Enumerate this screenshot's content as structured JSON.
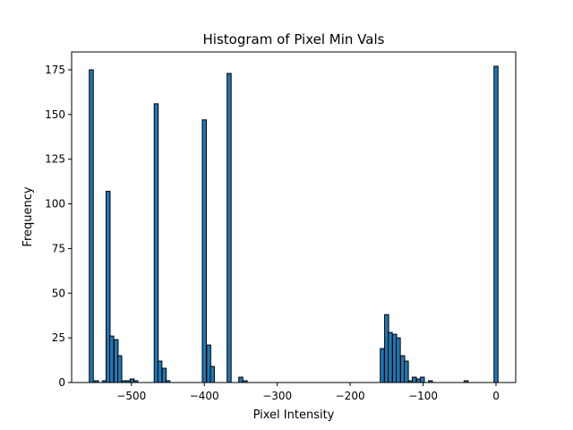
{
  "chart_data": {
    "type": "bar",
    "title": "Histogram of Pixel Min Vals",
    "xlabel": "Pixel Intensity",
    "ylabel": "Frequency",
    "xlim": [
      -582,
      27
    ],
    "ylim": [
      0,
      185
    ],
    "x_ticks": [
      -500,
      -400,
      -300,
      -200,
      -100,
      0
    ],
    "y_ticks": [
      0,
      25,
      50,
      75,
      100,
      125,
      150,
      175
    ],
    "x_tick_labels": [
      "−500",
      "−400",
      "−300",
      "−200",
      "−100",
      "0"
    ],
    "y_tick_labels": [
      "0",
      "25",
      "50",
      "75",
      "100",
      "125",
      "150",
      "175"
    ],
    "bin_width": 5.54,
    "bar_color": "#1f77b4",
    "edge_color": "#000000",
    "grid": false,
    "bins": [
      {
        "x": -555,
        "value": 175
      },
      {
        "x": -548,
        "value": 1
      },
      {
        "x": -537,
        "value": 1
      },
      {
        "x": -532,
        "value": 107
      },
      {
        "x": -527,
        "value": 26
      },
      {
        "x": -521,
        "value": 24
      },
      {
        "x": -516,
        "value": 15
      },
      {
        "x": -510,
        "value": 1
      },
      {
        "x": -505,
        "value": 1
      },
      {
        "x": -499,
        "value": 2
      },
      {
        "x": -494,
        "value": 1
      },
      {
        "x": -466,
        "value": 156
      },
      {
        "x": -461,
        "value": 12
      },
      {
        "x": -455,
        "value": 8
      },
      {
        "x": -450,
        "value": 1
      },
      {
        "x": -400,
        "value": 147
      },
      {
        "x": -394,
        "value": 21
      },
      {
        "x": -389,
        "value": 9
      },
      {
        "x": -366,
        "value": 173
      },
      {
        "x": -350,
        "value": 3
      },
      {
        "x": -344,
        "value": 1
      },
      {
        "x": -156,
        "value": 19
      },
      {
        "x": -150,
        "value": 38
      },
      {
        "x": -145,
        "value": 28
      },
      {
        "x": -139,
        "value": 27
      },
      {
        "x": -134,
        "value": 25
      },
      {
        "x": -128,
        "value": 15
      },
      {
        "x": -123,
        "value": 12
      },
      {
        "x": -117,
        "value": 1
      },
      {
        "x": -112,
        "value": 3
      },
      {
        "x": -106,
        "value": 2
      },
      {
        "x": -101,
        "value": 3
      },
      {
        "x": -90,
        "value": 1
      },
      {
        "x": -41,
        "value": 1
      },
      {
        "x": 0,
        "value": 177
      }
    ]
  }
}
